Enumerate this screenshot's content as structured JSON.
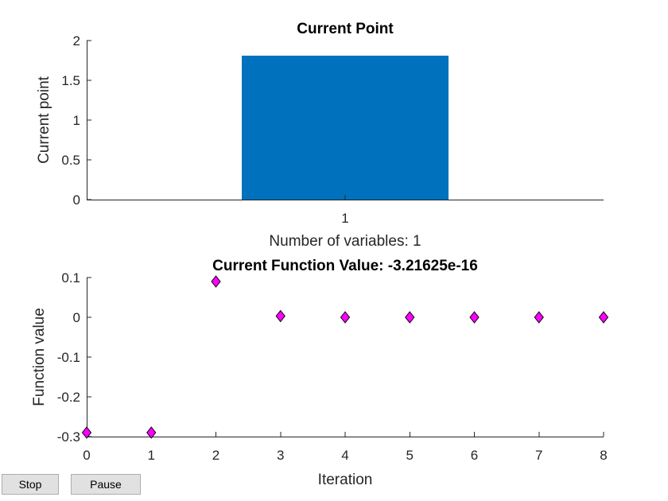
{
  "chart_data": [
    {
      "type": "bar",
      "title": "Current Point",
      "xlabel": "Number of variables: 1",
      "ylabel": "Current point",
      "categories": [
        "1"
      ],
      "values": [
        1.81
      ],
      "ylim": [
        0,
        2
      ],
      "yticks": [
        "0",
        "0.5",
        "1",
        "1.5",
        "2"
      ],
      "bar_color": "#0072bd"
    },
    {
      "type": "scatter",
      "title": "Current Function Value: -3.21625e-16",
      "xlabel": "Iteration",
      "ylabel": "Function value",
      "x": [
        0,
        1,
        2,
        3,
        4,
        5,
        6,
        7,
        8
      ],
      "y": [
        -0.29,
        -0.29,
        0.09,
        0.003,
        0.0,
        0.0,
        0.0,
        0.0,
        0.0
      ],
      "xlim": [
        0,
        8
      ],
      "ylim": [
        -0.3,
        0.1
      ],
      "xticks": [
        "0",
        "1",
        "2",
        "3",
        "4",
        "5",
        "6",
        "7",
        "8"
      ],
      "yticks": [
        "-0.3",
        "-0.2",
        "-0.1",
        "0",
        "0.1"
      ],
      "marker": "diamond",
      "marker_color": "#ff00ff"
    }
  ],
  "buttons": {
    "stop_label": "Stop",
    "pause_label": "Pause"
  }
}
